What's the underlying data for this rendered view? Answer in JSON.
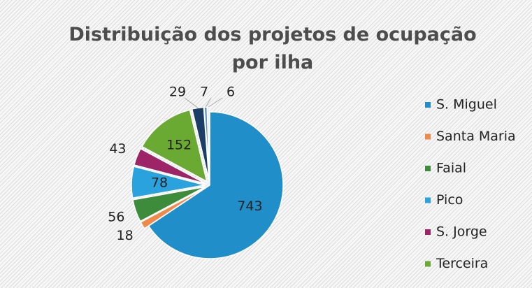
{
  "chart_data": {
    "type": "pie",
    "title": "Distribuição dos projetos de ocupação por ilha",
    "categories": [
      "S. Miguel",
      "Santa Maria",
      "Faial",
      "Pico",
      "S. Jorge",
      "Terceira",
      null,
      null,
      null
    ],
    "values": [
      743,
      18,
      56,
      78,
      43,
      152,
      29,
      7,
      6
    ],
    "colors": [
      "#1f8ec9",
      "#f08a4b",
      "#3c8c3c",
      "#2aa2de",
      "#9e2468",
      "#6aaa32",
      "#1b3d66",
      "#5b93c7",
      "#eeeeee"
    ],
    "legend": "right"
  }
}
